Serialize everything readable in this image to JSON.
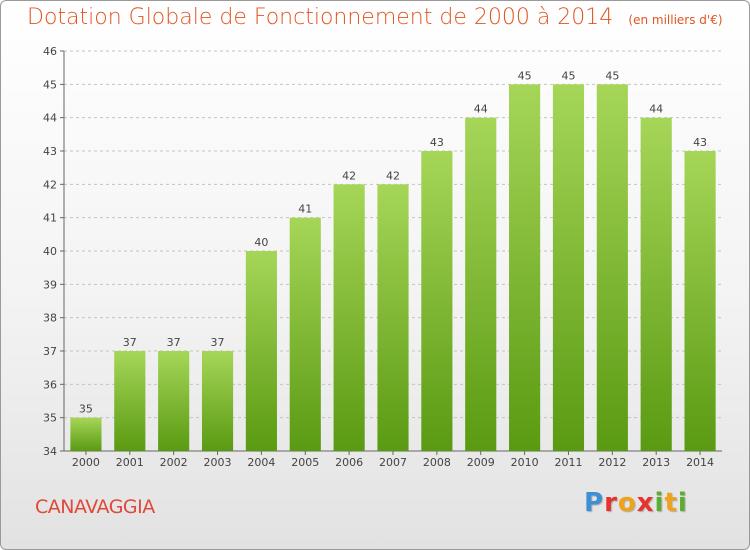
{
  "header": {
    "title": "Dotation Globale de Fonctionnement de 2000 à 2014",
    "subtitle": "(en milliers d'€)"
  },
  "commune": "CANAVAGGIA",
  "brand": {
    "name": "Proxiti",
    "letters": [
      "P",
      "r",
      "o",
      "x",
      "i",
      "t",
      "i"
    ],
    "colors": [
      "#3d8fd6",
      "#e8322e",
      "#f0a21a",
      "#5aae2e"
    ]
  },
  "chart_data": {
    "type": "bar",
    "title": "Dotation Globale de Fonctionnement de 2000 à 2014",
    "subtitle": "(en milliers d'€)",
    "xlabel": "",
    "ylabel": "",
    "categories": [
      "2000",
      "2001",
      "2002",
      "2003",
      "2004",
      "2005",
      "2006",
      "2007",
      "2008",
      "2009",
      "2010",
      "2011",
      "2012",
      "2013",
      "2014"
    ],
    "values": [
      35,
      37,
      37,
      37,
      40,
      41,
      42,
      42,
      43,
      44,
      45,
      45,
      45,
      44,
      43
    ],
    "ylim": [
      34,
      46
    ],
    "yticks": [
      34,
      35,
      36,
      37,
      38,
      39,
      40,
      41,
      42,
      43,
      44,
      45,
      46
    ],
    "grid": true,
    "bar_color_top": "#a6d658",
    "bar_color_bottom": "#5a9a12",
    "value_labels": true
  }
}
